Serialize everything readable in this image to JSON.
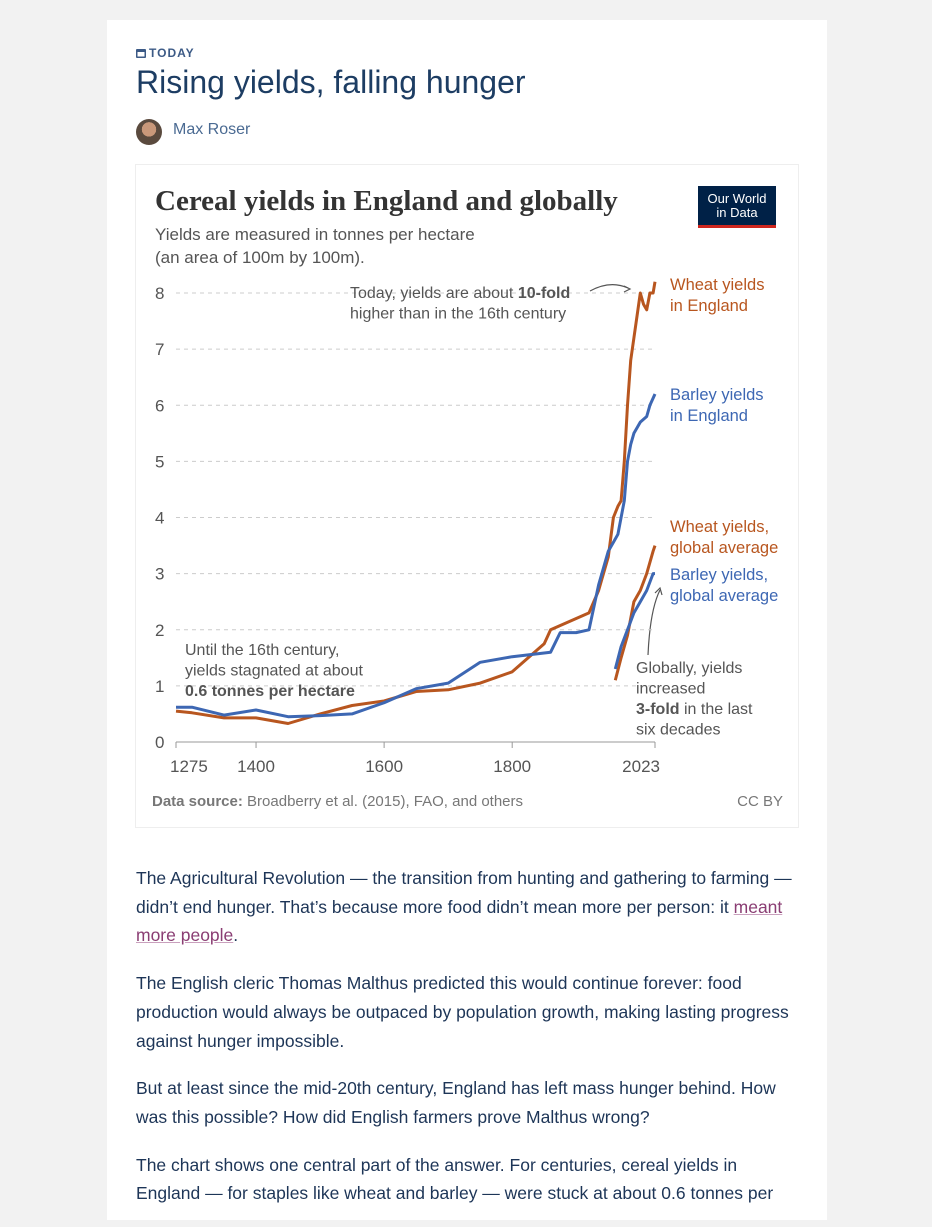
{
  "header": {
    "section": "TODAY",
    "title": "Rising yields, falling hunger",
    "author": "Max Roser"
  },
  "chart_data": {
    "type": "line",
    "title": "Cereal yields in England and globally",
    "subtitle": [
      "Yields are measured in tonnes per hectare",
      "(an area of 100m by 100m)."
    ],
    "logo": [
      "Our World",
      "in Data"
    ],
    "xlim": [
      1275,
      2023
    ],
    "xticks": [
      1275,
      1400,
      1600,
      1800,
      2023
    ],
    "ylim": [
      0,
      8
    ],
    "yticks": [
      0,
      1,
      2,
      3,
      4,
      5,
      6,
      7,
      8
    ],
    "grid": true,
    "series": [
      {
        "name": [
          "Wheat yields",
          "in England"
        ],
        "color": "#b8561f",
        "x": [
          1275,
          1300,
          1350,
          1400,
          1450,
          1500,
          1550,
          1600,
          1650,
          1700,
          1750,
          1800,
          1850,
          1860,
          1900,
          1920,
          1935,
          1950,
          1958,
          1965,
          1970,
          1975,
          1980,
          1985,
          1990,
          1995,
          2000,
          2005,
          2010,
          2015,
          2020,
          2023
        ],
        "values": [
          0.55,
          0.52,
          0.43,
          0.43,
          0.33,
          0.5,
          0.65,
          0.73,
          0.9,
          0.93,
          1.05,
          1.25,
          1.75,
          2.0,
          2.2,
          2.3,
          2.7,
          3.3,
          4.0,
          4.2,
          4.3,
          5.0,
          6.0,
          6.8,
          7.2,
          7.6,
          8.0,
          7.8,
          7.7,
          8.0,
          8.0,
          8.2
        ]
      },
      {
        "name": [
          "Barley yields",
          "in England"
        ],
        "color": "#3d67b3",
        "x": [
          1275,
          1300,
          1350,
          1400,
          1450,
          1500,
          1550,
          1600,
          1650,
          1700,
          1750,
          1800,
          1860,
          1875,
          1900,
          1920,
          1935,
          1950,
          1960,
          1965,
          1970,
          1975,
          1980,
          1985,
          1990,
          2000,
          2010,
          2015,
          2023
        ],
        "values": [
          0.62,
          0.62,
          0.48,
          0.57,
          0.45,
          0.47,
          0.5,
          0.7,
          0.95,
          1.05,
          1.42,
          1.52,
          1.6,
          1.95,
          1.95,
          2.0,
          2.8,
          3.4,
          3.6,
          3.7,
          4.0,
          4.3,
          5.0,
          5.3,
          5.5,
          5.7,
          5.8,
          6.0,
          6.2
        ]
      },
      {
        "name": [
          "Wheat yields,",
          "global average"
        ],
        "color": "#b8561f",
        "x": [
          1961,
          1970,
          1980,
          1990,
          2000,
          2010,
          2020,
          2023
        ],
        "values": [
          1.1,
          1.5,
          1.9,
          2.5,
          2.7,
          3.0,
          3.4,
          3.5
        ]
      },
      {
        "name": [
          "Barley yields,",
          "global average"
        ],
        "color": "#3d67b3",
        "x": [
          1961,
          1970,
          1980,
          1990,
          2000,
          2010,
          2020,
          2023
        ],
        "values": [
          1.3,
          1.7,
          2.0,
          2.3,
          2.5,
          2.7,
          3.0,
          3.0
        ]
      }
    ],
    "annotations": [
      {
        "lines": [
          [
            {
              "text": "Today, yields are about "
            },
            {
              "text": "10-fold",
              "bold": true
            }
          ],
          [
            {
              "text": "higher than in the 16th century"
            }
          ]
        ]
      },
      {
        "lines": [
          [
            {
              "text": "Until the 16th century,"
            }
          ],
          [
            {
              "text": "yields stagnated at about"
            }
          ],
          [
            {
              "text": "0.6 tonnes per hectare",
              "bold": true
            }
          ]
        ]
      },
      {
        "lines": [
          [
            {
              "text": "Globally, yields"
            }
          ],
          [
            {
              "text": "increased"
            }
          ],
          [
            {
              "text": "3-fold",
              "bold": true
            },
            {
              "text": " in the last"
            }
          ],
          [
            {
              "text": "six decades"
            }
          ]
        ]
      }
    ],
    "source_label": "Data source:",
    "source": " Broadberry et al. (2015), FAO, and others",
    "license": "CC BY"
  },
  "paragraphs": [
    [
      {
        "text": "The Agricultural Revolution — the transition from hunting and gathering to farming — didn’t end hunger. That’s because more food didn’t mean more per person: it "
      },
      {
        "text": "meant more people",
        "link": true
      },
      {
        "text": "."
      }
    ],
    [
      {
        "text": "The English cleric Thomas Malthus predicted this would continue forever: food production would always be outpaced by population growth, making lasting progress against hunger impossible."
      }
    ],
    [
      {
        "text": "But at least since the mid-20th century, England has left mass hunger behind. How was this possible? How did English farmers prove Malthus wrong?"
      }
    ],
    [
      {
        "text": "The chart shows one central part of the answer. For centuries, cereal yields in England — for staples like wheat and barley — were stuck at about 0.6 tonnes per"
      }
    ]
  ]
}
